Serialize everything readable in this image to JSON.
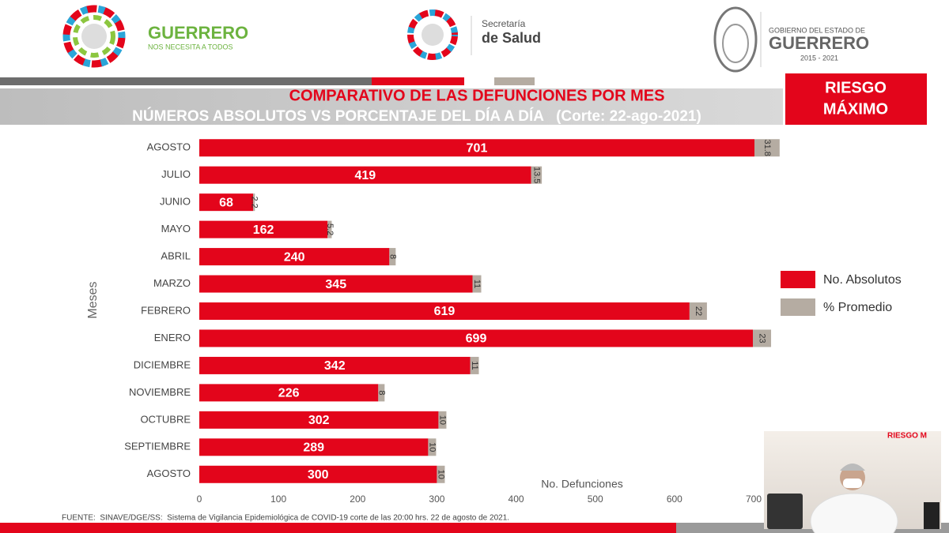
{
  "header": {
    "brand": "GUERRERO",
    "slogan": "NOS NECESITA A TODOS",
    "ministry_top": "Secretaría",
    "ministry_bottom": "de Salud",
    "gov_top": "GOBIERNO DEL ESTADO DE",
    "gov_name": "GUERRERO",
    "gov_years": "2015 - 2021"
  },
  "badge": {
    "line1": "RIESGO",
    "line2": "MÁXIMO"
  },
  "inset_label": "RIESGO M",
  "footer": "FUENTE:  SINAVE/DGE/SS:  Sistema de Vigilancia Epidemiológica de COVID-19 corte de las 20:00 hrs. 22 de agosto de 2021.",
  "chart_data": {
    "type": "bar",
    "orientation": "horizontal",
    "stacked": true,
    "title": "COMPARATIVO DE LAS DEFUNCIONES POR MES",
    "subtitle": "NÚMEROS ABSOLUTOS VS PORCENTAJE DEL DÍA A DÍA   (Corte: 22-ago-2021)",
    "x_label": "No. Defunciones",
    "y_label": "Meses",
    "categories": [
      "AGOSTO",
      "JULIO",
      "JUNIO",
      "MAYO",
      "ABRIL",
      "MARZO",
      "FEBRERO",
      "ENERO",
      "DICIEMBRE",
      "NOVIEMBRE",
      "OCTUBRE",
      "SEPTIEMBRE",
      "AGOSTO"
    ],
    "series": [
      {
        "name": "No. Absolutos",
        "color": "#e3051b",
        "values": [
          701,
          419,
          68,
          162,
          240,
          345,
          619,
          699,
          342,
          226,
          302,
          289,
          300
        ]
      },
      {
        "name": "% Promedio",
        "color": "#b5aca2",
        "values": [
          31.8,
          13.5,
          2.2,
          5.2,
          8,
          11,
          22,
          23,
          11,
          8,
          10,
          10,
          10
        ]
      }
    ],
    "xlim": [
      0,
      700
    ],
    "xticks": [
      0,
      100,
      200,
      300,
      400,
      500,
      600,
      700
    ],
    "legend": "right",
    "grid": false
  }
}
